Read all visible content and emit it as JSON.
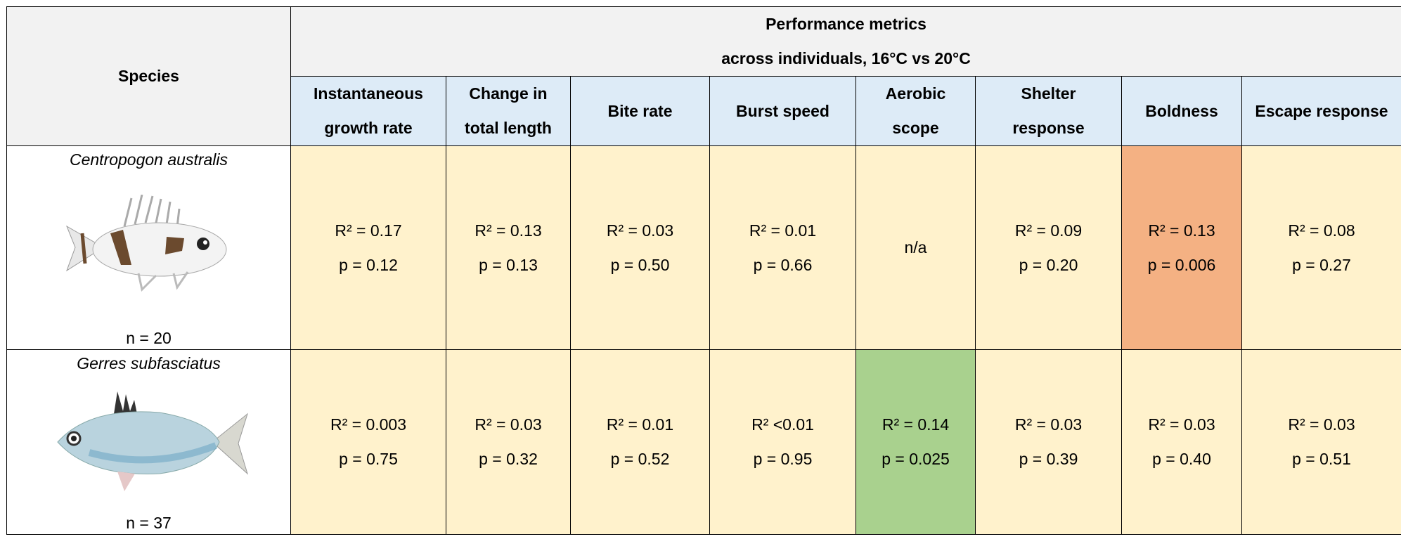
{
  "header": {
    "species": "Species",
    "title": "Performance metrics",
    "subtitle": "across individuals, 16°C vs 20°C",
    "title_color": "#f2f2f2",
    "column_color": "#ddebf7",
    "columns": [
      [
        "Instantaneous",
        "growth rate"
      ],
      [
        "Change in",
        "total length"
      ],
      [
        "Bite rate"
      ],
      [
        "Burst speed"
      ],
      [
        "Aerobic",
        "scope"
      ],
      [
        "Shelter",
        "response"
      ],
      [
        "Boldness"
      ],
      [
        "Escape response"
      ]
    ]
  },
  "table": {
    "cell_color": "#fff2cc",
    "rows": [
      {
        "species": "Centropogon australis",
        "n": "n = 20",
        "cells": [
          {
            "r2": "R² = 0.17",
            "p": "p = 0.12"
          },
          {
            "r2": "R² = 0.13",
            "p": "p = 0.13"
          },
          {
            "r2": "R² = 0.03",
            "p": "p = 0.50"
          },
          {
            "r2": "R² = 0.01",
            "p": "p = 0.66"
          },
          {
            "text": "n/a"
          },
          {
            "r2": "R² = 0.09",
            "p": "p = 0.20"
          },
          {
            "r2": "R² = 0.13",
            "p": "p = 0.006",
            "color": "#f4b183"
          },
          {
            "r2": "R² = 0.08",
            "p": "p = 0.27"
          }
        ]
      },
      {
        "species": "Gerres subfasciatus",
        "n": "n = 37",
        "cells": [
          {
            "r2": "R² = 0.003",
            "p": "p = 0.75"
          },
          {
            "r2": "R² = 0.03",
            "p": "p = 0.32"
          },
          {
            "r2": "R² = 0.01",
            "p": "p = 0.52"
          },
          {
            "r2": "R² <0.01",
            "p": "p = 0.95"
          },
          {
            "r2": "R² = 0.14",
            "p": "p = 0.025",
            "color": "#a9d18e"
          },
          {
            "r2": "R² = 0.03",
            "p": "p = 0.39"
          },
          {
            "r2": "R² = 0.03",
            "p": "p = 0.40"
          },
          {
            "r2": "R² = 0.03",
            "p": "p = 0.51"
          }
        ]
      }
    ]
  }
}
